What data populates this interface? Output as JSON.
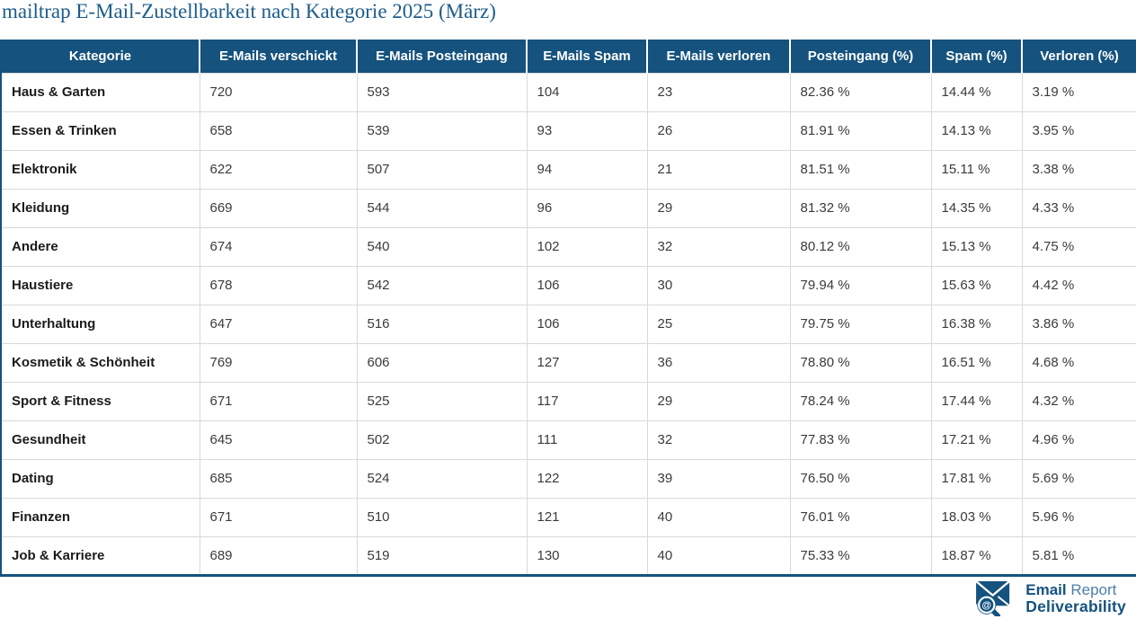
{
  "title": "mailtrap E-Mail-Zustellbarkeit nach Kategorie 2025 (März)",
  "chart_data": {
    "type": "table",
    "title": "mailtrap E-Mail-Zustellbarkeit nach Kategorie 2025 (März)",
    "columns": [
      "Kategorie",
      "E-Mails verschickt",
      "E-Mails Posteingang",
      "E-Mails Spam",
      "E-Mails verloren",
      "Posteingang (%)",
      "Spam (%)",
      "Verloren (%)"
    ],
    "rows": [
      [
        "Haus & Garten",
        "720",
        "593",
        "104",
        "23",
        "82.36 %",
        "14.44 %",
        "3.19 %"
      ],
      [
        "Essen & Trinken",
        "658",
        "539",
        "93",
        "26",
        "81.91 %",
        "14.13 %",
        "3.95 %"
      ],
      [
        "Elektronik",
        "622",
        "507",
        "94",
        "21",
        "81.51 %",
        "15.11 %",
        "3.38 %"
      ],
      [
        "Kleidung",
        "669",
        "544",
        "96",
        "29",
        "81.32 %",
        "14.35 %",
        "4.33 %"
      ],
      [
        "Andere",
        "674",
        "540",
        "102",
        "32",
        "80.12 %",
        "15.13 %",
        "4.75 %"
      ],
      [
        "Haustiere",
        "678",
        "542",
        "106",
        "30",
        "79.94 %",
        "15.63 %",
        "4.42 %"
      ],
      [
        "Unterhaltung",
        "647",
        "516",
        "106",
        "25",
        "79.75 %",
        "16.38 %",
        "3.86 %"
      ],
      [
        "Kosmetik & Schönheit",
        "769",
        "606",
        "127",
        "36",
        "78.80 %",
        "16.51 %",
        "4.68 %"
      ],
      [
        "Sport & Fitness",
        "671",
        "525",
        "117",
        "29",
        "78.24 %",
        "17.44 %",
        "4.32 %"
      ],
      [
        "Gesundheit",
        "645",
        "502",
        "111",
        "32",
        "77.83 %",
        "17.21 %",
        "4.96 %"
      ],
      [
        "Dating",
        "685",
        "524",
        "122",
        "39",
        "76.50 %",
        "17.81 %",
        "5.69 %"
      ],
      [
        "Finanzen",
        "671",
        "510",
        "121",
        "40",
        "76.01 %",
        "18.03 %",
        "5.96 %"
      ],
      [
        "Job & Karriere",
        "689",
        "519",
        "130",
        "40",
        "75.33 %",
        "18.87 %",
        "5.81 %"
      ]
    ]
  },
  "logo": {
    "line1_bold": "Email",
    "line1_regular": "Report",
    "line2_bold": "Deliverability",
    "at_symbol": "@"
  },
  "colors": {
    "header_bg": "#15527e",
    "title_text": "#1c5c8a",
    "grid_line": "#d9d9d9",
    "brand_dark_blue": "#15527e",
    "brand_light_blue": "#4a7fa9"
  }
}
